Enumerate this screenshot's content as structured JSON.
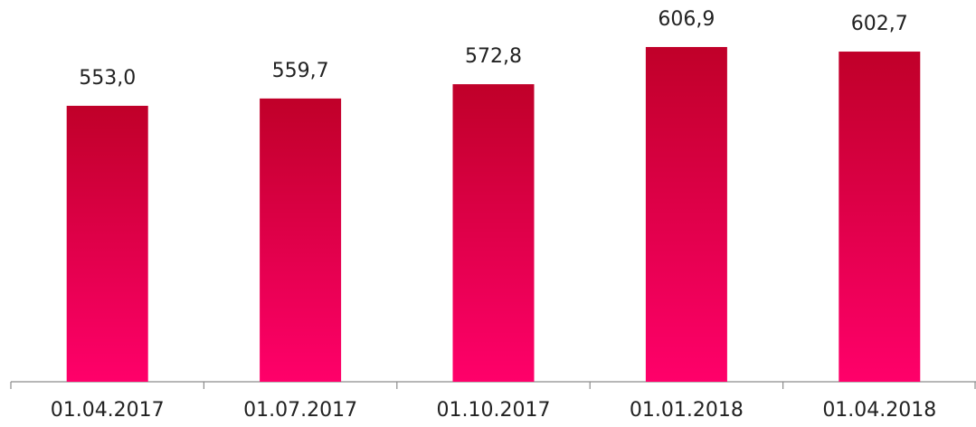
{
  "chart_data": {
    "type": "bar",
    "categories": [
      "01.04.2017",
      "01.07.2017",
      "01.10.2017",
      "01.01.2018",
      "01.04.2018"
    ],
    "values": [
      553.0,
      559.7,
      572.8,
      606.9,
      602.7
    ],
    "value_labels": [
      "553,0",
      "559,7",
      "572,8",
      "606,9",
      "602,7"
    ],
    "gradient_colors": [
      "#c00029",
      "#ff006a"
    ],
    "ylim": [
      300,
      650
    ]
  }
}
